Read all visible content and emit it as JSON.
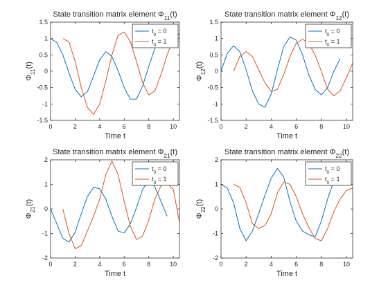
{
  "figure": {
    "colors": {
      "series_t0_0": "#0072BD",
      "series_t0_1": "#D95319",
      "axis": "#262626"
    }
  },
  "chart_data": [
    {
      "id": "phi11",
      "type": "line",
      "title_main": "State transition matrix element Φ",
      "title_sub": "11",
      "title_tail": "(t)",
      "xlabel": "Time t",
      "ylabel_main": "Φ",
      "ylabel_sub": "11",
      "ylabel_tail": "(t)",
      "xlim": [
        0,
        10.5
      ],
      "ylim": [
        -1.5,
        1.5
      ],
      "xticks": [
        0,
        2,
        4,
        6,
        8,
        10
      ],
      "yticks": [
        -1.5,
        -1,
        -0.5,
        0,
        0.5,
        1,
        1.5
      ],
      "legend_position": "top-right",
      "series": [
        {
          "name_main": "t",
          "name_sub": "0",
          "name_tail": " = 0",
          "color": "#0072BD",
          "x": [
            0,
            0.5,
            1,
            1.5,
            2,
            2.5,
            3,
            3.5,
            4,
            4.5,
            5,
            5.5,
            6,
            6.5,
            7,
            7.5,
            8,
            8.5,
            9,
            9.5
          ],
          "y": [
            1.0,
            0.88,
            0.5,
            -0.05,
            -0.55,
            -0.78,
            -0.62,
            -0.15,
            0.35,
            0.6,
            0.45,
            0.02,
            -0.5,
            -0.85,
            -0.85,
            -0.45,
            0.15,
            0.7,
            1.0,
            0.98
          ]
        },
        {
          "name_main": "t",
          "name_sub": "0",
          "name_tail": " = 1",
          "color": "#D95319",
          "x": [
            1,
            1.5,
            2,
            2.5,
            3,
            3.5,
            4,
            4.5,
            5,
            5.5,
            6,
            6.5,
            7,
            7.5,
            8,
            8.5,
            9,
            9.5,
            10,
            10.5
          ],
          "y": [
            1.0,
            0.9,
            0.3,
            -0.5,
            -1.1,
            -1.32,
            -1.0,
            -0.3,
            0.5,
            1.1,
            1.2,
            0.9,
            0.3,
            -0.35,
            -0.72,
            -0.6,
            -0.1,
            0.5,
            1.0,
            1.15
          ]
        }
      ]
    },
    {
      "id": "phi12",
      "type": "line",
      "title_main": "State transition matrix element Φ",
      "title_sub": "12",
      "title_tail": "(t)",
      "xlabel": "Time t",
      "ylabel_main": "Φ",
      "ylabel_sub": "12",
      "ylabel_tail": "(t)",
      "xlim": [
        0,
        10.5
      ],
      "ylim": [
        -1.5,
        1.5
      ],
      "xticks": [
        0,
        2,
        4,
        6,
        8,
        10
      ],
      "yticks": [
        -1.5,
        -1,
        -0.5,
        0,
        0.5,
        1,
        1.5
      ],
      "legend_position": "top-right",
      "series": [
        {
          "name_main": "t",
          "name_sub": "0",
          "name_tail": " = 0",
          "color": "#0072BD",
          "x": [
            0,
            0.5,
            1,
            1.5,
            2,
            2.5,
            3,
            3.5,
            4,
            4.5,
            5,
            5.5,
            6,
            6.5,
            7,
            7.5,
            8,
            8.5,
            9,
            9.5
          ],
          "y": [
            0.0,
            0.55,
            0.78,
            0.6,
            0.05,
            -0.6,
            -1.0,
            -1.1,
            -0.7,
            0.05,
            0.75,
            1.05,
            0.95,
            0.5,
            -0.1,
            -0.55,
            -0.72,
            -0.5,
            0.0,
            0.38
          ]
        },
        {
          "name_main": "t",
          "name_sub": "0",
          "name_tail": " = 1",
          "color": "#D95319",
          "x": [
            1,
            1.5,
            2,
            2.5,
            3,
            3.5,
            4,
            4.5,
            5,
            5.5,
            6,
            6.5,
            7,
            7.5,
            8,
            8.5,
            9,
            9.5,
            10,
            10.5
          ],
          "y": [
            0.0,
            0.45,
            0.6,
            0.45,
            0.05,
            -0.35,
            -0.62,
            -0.55,
            -0.1,
            0.45,
            0.85,
            0.98,
            0.85,
            0.5,
            0.0,
            -0.55,
            -0.75,
            -0.6,
            -0.2,
            0.25
          ]
        }
      ]
    },
    {
      "id": "phi21",
      "type": "line",
      "title_main": "State transition matrix element Φ",
      "title_sub": "21",
      "title_tail": "(t)",
      "xlabel": "Time t",
      "ylabel_main": "Φ",
      "ylabel_sub": "21",
      "ylabel_tail": "(t)",
      "xlim": [
        0,
        10.5
      ],
      "ylim": [
        -2,
        2
      ],
      "xticks": [
        0,
        2,
        4,
        6,
        8,
        10
      ],
      "yticks": [
        -2,
        -1,
        0,
        1,
        2
      ],
      "legend_position": "top-right",
      "series": [
        {
          "name_main": "t",
          "name_sub": "0",
          "name_tail": " = 0",
          "color": "#0072BD",
          "x": [
            0,
            0.5,
            1,
            1.5,
            2,
            2.5,
            3,
            3.5,
            4,
            4.5,
            5,
            5.5,
            6,
            6.5,
            7,
            7.5,
            8,
            8.5,
            9,
            9.5
          ],
          "y": [
            0.0,
            -0.6,
            -1.2,
            -1.35,
            -0.95,
            -0.2,
            0.5,
            0.88,
            0.82,
            0.4,
            -0.3,
            -0.9,
            -0.98,
            -0.6,
            0.05,
            0.8,
            1.15,
            0.9,
            0.3,
            -0.3
          ]
        },
        {
          "name_main": "t",
          "name_sub": "0",
          "name_tail": " = 1",
          "color": "#D95319",
          "x": [
            1,
            1.5,
            2,
            2.5,
            3,
            3.5,
            4,
            4.5,
            5,
            5.5,
            6,
            6.5,
            7,
            7.5,
            8,
            8.5,
            9,
            9.5,
            10,
            10.5
          ],
          "y": [
            0.0,
            -1.0,
            -1.62,
            -1.5,
            -0.9,
            -0.3,
            0.4,
            1.4,
            1.95,
            1.4,
            0.3,
            -0.7,
            -1.25,
            -1.1,
            -0.45,
            0.4,
            0.95,
            1.05,
            0.8,
            -0.55
          ]
        }
      ]
    },
    {
      "id": "phi22",
      "type": "line",
      "title_main": "State transition matrix element Φ",
      "title_sub": "22",
      "title_tail": "(t)",
      "xlabel": "Time t",
      "ylabel_main": "Φ",
      "ylabel_sub": "22",
      "ylabel_tail": "(t)",
      "xlim": [
        0,
        10.5
      ],
      "ylim": [
        -2,
        2
      ],
      "xticks": [
        0,
        2,
        4,
        6,
        8,
        10
      ],
      "yticks": [
        -2,
        -1,
        0,
        1,
        2
      ],
      "legend_position": "top-right",
      "series": [
        {
          "name_main": "t",
          "name_sub": "0",
          "name_tail": " = 0",
          "color": "#0072BD",
          "x": [
            0,
            0.5,
            1,
            1.5,
            2,
            2.5,
            3,
            3.5,
            4,
            4.5,
            5,
            5.5,
            6,
            6.5,
            7,
            7.5,
            8,
            8.5,
            9,
            9.5
          ],
          "y": [
            1.0,
            0.85,
            0.25,
            -0.8,
            -1.3,
            -0.9,
            -0.2,
            0.55,
            1.25,
            1.65,
            1.3,
            0.3,
            -0.5,
            -0.9,
            -1.05,
            -1.15,
            -0.5,
            0.4,
            1.15,
            1.15
          ]
        },
        {
          "name_main": "t",
          "name_sub": "0",
          "name_tail": " = 1",
          "color": "#D95319",
          "x": [
            1,
            1.5,
            2,
            2.5,
            3,
            3.5,
            4,
            4.5,
            5,
            5.5,
            6,
            6.5,
            7,
            7.5,
            8,
            8.5,
            9,
            9.5,
            10,
            10.5
          ],
          "y": [
            1.0,
            0.88,
            0.25,
            -0.6,
            -0.8,
            -0.68,
            -0.2,
            0.65,
            1.1,
            1.0,
            0.5,
            -0.2,
            -0.75,
            -1.2,
            -1.3,
            -0.8,
            -0.1,
            0.4,
            0.75,
            0.85
          ]
        }
      ]
    }
  ]
}
